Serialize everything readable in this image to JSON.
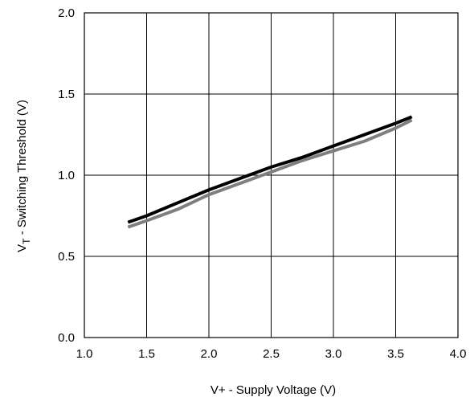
{
  "chart_data": {
    "type": "line",
    "xlabel": "V+ - Supply Voltage (V)",
    "ylabel_main": "V",
    "ylabel_sub": "T",
    "ylabel_rest": " - Switching Threshold (V)",
    "xlim": [
      1.0,
      4.0
    ],
    "ylim": [
      0.0,
      2.0
    ],
    "xticks": [
      1.0,
      1.5,
      2.0,
      2.5,
      3.0,
      3.5,
      4.0
    ],
    "xtick_labels": [
      "1.0",
      "1.5",
      "2.0",
      "2.5",
      "3.0",
      "3.5",
      "4.0"
    ],
    "yticks": [
      0.0,
      0.5,
      1.0,
      1.5,
      2.0
    ],
    "ytick_labels": [
      "0.0",
      "0.5",
      "1.0",
      "1.5",
      "2.0"
    ],
    "grid": true,
    "series": [
      {
        "color": "#7f7f7f",
        "x": [
          1.35,
          1.5,
          1.75,
          2.0,
          2.25,
          2.5,
          2.75,
          3.0,
          3.25,
          3.5,
          3.63
        ],
        "y": [
          0.68,
          0.72,
          0.79,
          0.88,
          0.95,
          1.02,
          1.09,
          1.15,
          1.21,
          1.29,
          1.34
        ]
      },
      {
        "color": "#000000",
        "x": [
          1.35,
          1.5,
          1.75,
          2.0,
          2.25,
          2.5,
          2.75,
          3.0,
          3.25,
          3.5,
          3.63
        ],
        "y": [
          0.71,
          0.75,
          0.83,
          0.91,
          0.98,
          1.05,
          1.11,
          1.18,
          1.25,
          1.32,
          1.36
        ]
      }
    ]
  }
}
